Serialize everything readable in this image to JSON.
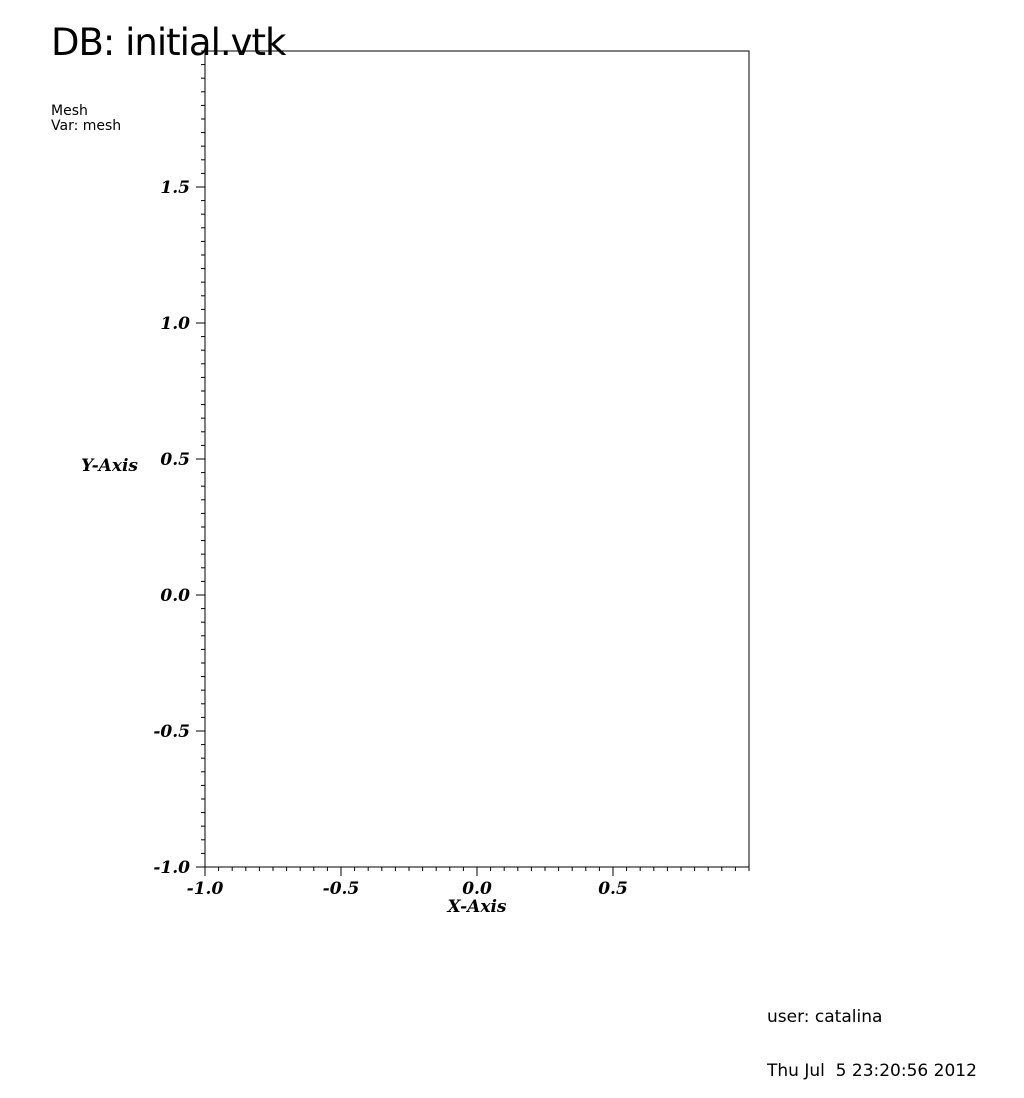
{
  "header": {
    "title": "DB: initial.vtk",
    "plot_type": "Mesh",
    "variable": "Var: mesh"
  },
  "footer": {
    "user": "user: catalina",
    "timestamp": "Thu Jul  5 23:20:56 2012"
  },
  "chart_data": {
    "type": "scatter",
    "xlabel": "X-Axis",
    "ylabel": "Y-Axis",
    "xlim": [
      -1.0,
      1.0
    ],
    "ylim": [
      -1.0,
      2.0
    ],
    "x_ticks": [
      -1.0,
      -0.5,
      0.0,
      0.5
    ],
    "y_ticks": [
      -1.0,
      -0.5,
      0.0,
      0.5,
      1.0,
      1.5
    ],
    "x_tick_labels": [
      "-1.0",
      "-0.5",
      "0.0",
      "0.5"
    ],
    "y_tick_labels": [
      "-1.0",
      "-0.5",
      "0.0",
      "0.5",
      "1.0",
      "1.5"
    ],
    "series": [],
    "grid": false,
    "colors": {
      "axis": "#000000",
      "background": "#ffffff"
    }
  }
}
